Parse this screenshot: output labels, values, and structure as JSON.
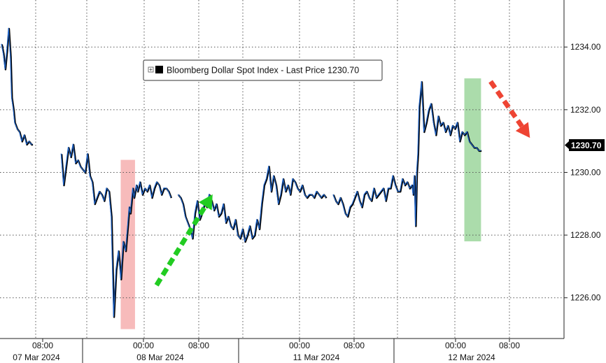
{
  "chart_data": {
    "type": "line",
    "title": "",
    "xlabel": "",
    "ylabel": "",
    "legend": {
      "label": "Bloomberg Dollar Spot Index - Last Price 1230.70",
      "placement": "top-center"
    },
    "last_price": "1230.70",
    "ylim": [
      1224.7,
      1235.5
    ],
    "yticks": [
      "1226.00",
      "1228.00",
      "1230.00",
      "1232.00",
      "1234.00"
    ],
    "grid": true,
    "x_time_labels": [
      "08:00",
      "00:00",
      "08:00",
      "00:00",
      "08:00",
      "00:00",
      "08:00"
    ],
    "x_date_labels": [
      "07 Mar 2024",
      "08 Mar 2024",
      "11 Mar 2024",
      "12 Mar 2024"
    ],
    "series": [
      {
        "name": "Bloomberg Dollar Spot Index",
        "segments": [
          {
            "t": [
              0,
              0.15,
              0.3,
              0.45,
              0.6,
              0.75,
              0.85,
              1.0,
              1.1,
              1.3,
              1.5,
              1.7,
              1.9,
              2.1,
              2.3,
              2.5,
              2.6
            ],
            "v": [
              1234.1,
              1233.8,
              1233.3,
              1233.9,
              1234.6,
              1233.7,
              1232.4,
              1232.0,
              1231.6,
              1231.4,
              1231.3,
              1231.0,
              1231.2,
              1230.9,
              1231.0,
              1230.9,
              1230.9
            ]
          },
          {
            "t": [
              5.0,
              5.2,
              5.4,
              5.6,
              5.8,
              6.0,
              6.2,
              6.4,
              6.6,
              6.8,
              7.0,
              7.2,
              7.4,
              7.6,
              7.8,
              8.0,
              8.2,
              8.4,
              8.6,
              8.8,
              9.0,
              9.2,
              9.4,
              9.6,
              9.8,
              10.0,
              10.2,
              10.4,
              10.6,
              10.7,
              10.8,
              10.9,
              11.0,
              11.1,
              11.2,
              11.3,
              11.4,
              11.6,
              11.8,
              12.0,
              12.2,
              12.4,
              12.6,
              12.8,
              13.0,
              13.2,
              13.4,
              13.6,
              13.8,
              14.0,
              14.2
            ],
            "v": [
              1230.6,
              1229.6,
              1230.2,
              1230.8,
              1230.5,
              1230.9,
              1230.3,
              1230.4,
              1230.2,
              1230.1,
              1230.0,
              1230.6,
              1229.9,
              1229.7,
              1229.0,
              1229.2,
              1229.4,
              1229.3,
              1229.1,
              1229.5,
              1229.4,
              1228.6,
              1225.4,
              1226.9,
              1227.5,
              1226.6,
              1227.8,
              1227.5,
              1228.4,
              1228.9,
              1228.7,
              1229.1,
              1229.5,
              1229.2,
              1229.4,
              1229.6,
              1229.4,
              1229.7,
              1229.3,
              1229.5,
              1229.4,
              1229.6,
              1229.2,
              1229.5,
              1229.7,
              1229.6,
              1229.3,
              1229.5,
              1229.5,
              1229.4,
              1229.2
            ]
          },
          {
            "t": [
              14.8,
              15.0,
              15.2,
              15.4,
              15.6,
              15.8,
              16.0,
              16.2,
              16.4,
              16.6,
              16.8,
              17.0,
              17.2,
              17.4,
              17.6,
              17.8,
              18.0,
              18.2,
              18.4,
              18.6,
              18.8,
              19.0,
              19.2,
              19.4,
              19.6,
              19.8,
              20.0,
              20.2,
              20.4,
              20.6,
              20.8,
              21.0,
              21.2,
              21.4,
              21.6,
              21.8,
              22.0,
              22.2,
              22.4,
              22.6,
              22.8,
              23.0,
              23.2,
              23.4,
              23.6,
              23.8,
              24.0,
              24.2,
              24.4,
              24.6,
              24.8,
              25.0,
              25.2,
              25.4,
              25.6,
              25.8,
              26.0,
              26.2,
              26.4,
              26.6,
              26.8,
              27.0,
              27.2
            ],
            "v": [
              1229.3,
              1229.2,
              1229.0,
              1228.6,
              1228.4,
              1228.2,
              1227.9,
              1228.7,
              1229.1,
              1228.5,
              1228.7,
              1229.0,
              1228.9,
              1229.3,
              1229.1,
              1228.8,
              1229.0,
              1228.6,
              1228.7,
              1229.0,
              1228.4,
              1228.6,
              1228.3,
              1228.2,
              1228.5,
              1228.0,
              1227.9,
              1228.2,
              1227.8,
              1228.0,
              1228.3,
              1227.9,
              1228.0,
              1228.5,
              1228.2,
              1229.0,
              1229.6,
              1229.8,
              1230.2,
              1229.4,
              1229.9,
              1229.6,
              1229.0,
              1229.3,
              1229.8,
              1229.4,
              1229.6,
              1229.3,
              1229.8,
              1229.7,
              1229.5,
              1229.4,
              1229.6,
              1229.3,
              1229.2,
              1229.3,
              1229.3,
              1229.2,
              1229.4,
              1229.3,
              1229.2,
              1229.3,
              1229.2
            ]
          },
          {
            "t": [
              27.8,
              28.0,
              28.2,
              28.4,
              28.6,
              28.8,
              29.0,
              29.2,
              29.4,
              29.6,
              29.8,
              30.0,
              30.2,
              30.4,
              30.6,
              30.8,
              31.0,
              31.2,
              31.4,
              31.6,
              31.8,
              32.0,
              32.2,
              32.4,
              32.6,
              32.8,
              33.0,
              33.2,
              33.4,
              33.6,
              33.8,
              34.0,
              34.2,
              34.4,
              34.5,
              34.6,
              34.7,
              34.8,
              34.9,
              35.0,
              35.2,
              35.4,
              35.6,
              35.8,
              36.0,
              36.2,
              36.4,
              36.6,
              36.8,
              37.0,
              37.2,
              37.4,
              37.6,
              37.8,
              38.0,
              38.2,
              38.4,
              38.6,
              38.8,
              39.0,
              39.2,
              39.4,
              39.6,
              39.8,
              40.0,
              40.2
            ],
            "v": [
              1229.3,
              1229.1,
              1229.0,
              1229.2,
              1229.0,
              1228.7,
              1228.6,
              1228.9,
              1229.0,
              1229.2,
              1229.4,
              1229.1,
              1228.9,
              1229.3,
              1229.4,
              1229.2,
              1229.1,
              1229.5,
              1229.2,
              1229.3,
              1229.4,
              1229.5,
              1229.1,
              1229.5,
              1229.5,
              1229.9,
              1229.6,
              1229.4,
              1229.4,
              1229.8,
              1229.6,
              1229.7,
              1229.5,
              1229.6,
              1229.3,
              1229.9,
              1228.3,
              1230.0,
              1230.6,
              1232.1,
              1232.9,
              1231.3,
              1231.6,
              1232.0,
              1232.2,
              1231.6,
              1231.2,
              1231.8,
              1231.5,
              1231.6,
              1231.3,
              1231.5,
              1231.2,
              1231.5,
              1231.4,
              1231.6,
              1231.0,
              1231.3,
              1231.2,
              1231.3,
              1231.0,
              1230.9,
              1230.8,
              1230.8,
              1230.7,
              1230.7
            ]
          }
        ]
      }
    ],
    "highlights": [
      {
        "label": "red-box",
        "color": "#f4a4a4",
        "t_from": 10.0,
        "t_to": 11.2,
        "v_from": 1225.0,
        "v_to": 1230.4
      },
      {
        "label": "green-box",
        "color": "#8fd08f",
        "t_from": 38.8,
        "t_to": 40.2,
        "v_from": 1227.8,
        "v_to": 1233.0
      }
    ],
    "arrows": [
      {
        "label": "green-up-arrow",
        "color": "#22cc22",
        "t_from": 13.0,
        "v_from": 1226.4,
        "t_to": 17.7,
        "v_to": 1229.3
      },
      {
        "label": "red-down-arrow",
        "color": "#ee4433",
        "t_from": 41.0,
        "v_from": 1232.9,
        "t_to": 44.3,
        "v_to": 1231.1
      }
    ]
  },
  "style": {
    "line_color": "#1f63c6",
    "shadow_color": "#000000",
    "grid_color": "#555555",
    "axis_color": "#222222",
    "last_price_bg": "#000000"
  }
}
